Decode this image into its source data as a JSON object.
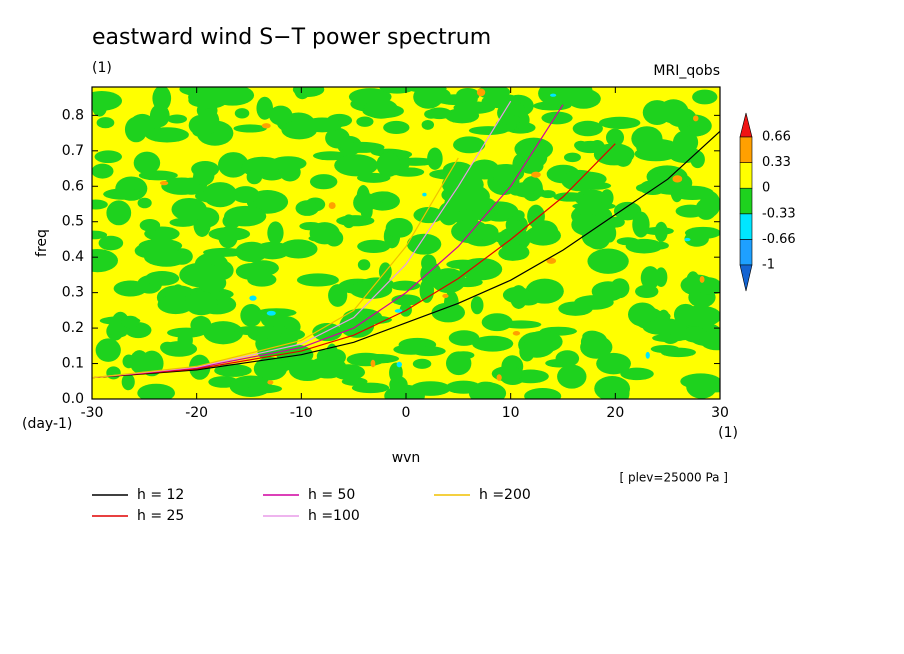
{
  "chart_data": {
    "type": "line",
    "title": "eastward wind S−T power spectrum",
    "subtitle": "(1)",
    "model_label": "MRI_qobs",
    "xlabel": "wvn",
    "ylabel": "freq",
    "xunit": "(1)",
    "yunit": "(day-1)",
    "annotation": "[ plev=25000 Pa ]",
    "x": [
      -30,
      -20,
      -10,
      -5,
      0,
      5,
      10,
      15,
      20,
      25,
      30
    ],
    "series": [
      {
        "name": "h = 12",
        "color": "#000000",
        "values": [
          0.06,
          0.082,
          0.125,
          0.16,
          0.215,
          0.27,
          0.335,
          0.42,
          0.52,
          0.62,
          0.755
        ]
      },
      {
        "name": "h = 25",
        "color": "#e00000",
        "values": [
          0.06,
          0.085,
          0.135,
          0.18,
          0.25,
          0.34,
          0.45,
          0.57,
          0.72,
          null,
          null
        ]
      },
      {
        "name": "h = 50",
        "color": "#d000a0",
        "values": [
          0.06,
          0.088,
          0.145,
          0.2,
          0.3,
          0.43,
          0.6,
          0.83,
          null,
          null,
          null
        ]
      },
      {
        "name": "h =100",
        "color": "#e89be8",
        "values": [
          0.06,
          0.09,
          0.155,
          0.23,
          0.38,
          0.6,
          0.84,
          null,
          null,
          null,
          null
        ]
      },
      {
        "name": "h =200",
        "color": "#f0c000",
        "values": [
          0.06,
          0.092,
          0.165,
          0.25,
          0.43,
          0.68,
          null,
          null,
          null,
          null,
          null
        ]
      }
    ],
    "xlim": [
      -30,
      30
    ],
    "ylim": [
      0,
      0.88
    ],
    "xticks": [
      -30,
      -20,
      -10,
      0,
      10,
      20,
      30
    ],
    "yticks": [
      {
        "value": 0,
        "label": "0.0"
      },
      0.1,
      0.2,
      0.3,
      0.4,
      0.5,
      0.6,
      0.7,
      0.8
    ],
    "colorbar": {
      "levels": [
        -1,
        -0.66,
        -0.33,
        0,
        0.33,
        0.66
      ],
      "colors": [
        "#1464d2",
        "#1ea0ff",
        "#00e6ff",
        "#1ed21e",
        "#ffff00",
        "#ffa000",
        "#f01414"
      ]
    }
  }
}
